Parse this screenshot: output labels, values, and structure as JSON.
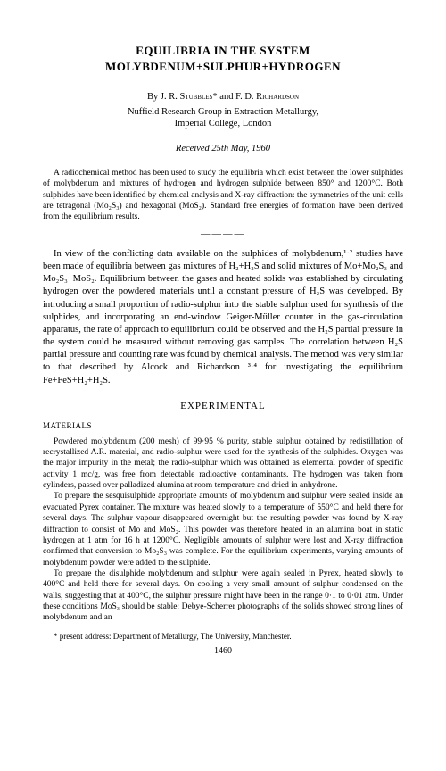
{
  "title_line1": "EQUILIBRIA IN THE SYSTEM",
  "title_line2": "MOLYBDENUM+SULPHUR+HYDROGEN",
  "byline_prefix": "By ",
  "author1": "J. R. Stubbles",
  "author_sep": "* and ",
  "author2": "F. D. Richardson",
  "affiliation_line1": "Nuffield Research Group in Extraction Metallurgy,",
  "affiliation_line2": "Imperial College, London",
  "received": "Received 25th May, 1960",
  "abstract": "A radiochemical method has been used to study the equilibria which exist between the lower sulphides of molybdenum and mixtures of hydrogen and hydrogen sulphide between 850° and 1200°C. Both sulphides have been identified by chemical analysis and X-ray diffraction: the symmetries of the unit cells are tetragonal (Mo₂S₃) and hexagonal (MoS₂). Standard free energies of formation have been derived from the equilibrium results.",
  "intro": "In view of the conflicting data available on the sulphides of molybdenum,¹·² studies have been made of equilibria between gas mixtures of H₂+H₂S and solid mixtures of Mo+Mo₂S₃ and Mo₂S₃+MoS₂. Equilibrium between the gases and heated solids was established by circulating hydrogen over the powdered materials until a constant pressure of H₂S was developed. By introducing a small proportion of radio-sulphur into the stable sulphur used for synthesis of the sulphides, and incorporating an end-window Geiger-Müller counter in the gas-circulation apparatus, the rate of approach to equilibrium could be observed and the H₂S partial pressure in the system could be measured without removing gas samples. The correlation between H₂S partial pressure and counting rate was found by chemical analysis. The method was very similar to that described by Alcock and Richardson ³·⁴ for investigating the equilibrium Fe+FeS+H₂+H₂S.",
  "section_heading": "EXPERIMENTAL",
  "subsection": "MATERIALS",
  "para1": "Powdered molybdenum (200 mesh) of 99·95 % purity, stable sulphur obtained by redistillation of recrystallized A.R. material, and radio-sulphur were used for the synthesis of the sulphides. Oxygen was the major impurity in the metal; the radio-sulphur which was obtained as elemental powder of specific activity 1 mc/g, was free from detectable radioactive contaminants. The hydrogen was taken from cylinders, passed over palladized alumina at room temperature and dried in anhydrone.",
  "para2": "To prepare the sesquisulphide appropriate amounts of molybdenum and sulphur were sealed inside an evacuated Pyrex container. The mixture was heated slowly to a temperature of 550°C and held there for several days. The sulphur vapour disappeared overnight but the resulting powder was found by X-ray diffraction to consist of Mo and MoS₂. This powder was therefore heated in an alumina boat in static hydrogen at 1 atm for 16 h at 1200°C. Negligible amounts of sulphur were lost and X-ray diffraction confirmed that conversion to Mo₂S₃ was complete. For the equilibrium experiments, varying amounts of molybdenum powder were added to the sulphide.",
  "para3": "To prepare the disulphide molybdenum and sulphur were again sealed in Pyrex, heated slowly to 400°C and held there for several days. On cooling a very small amount of sulphur condensed on the walls, suggesting that at 400°C, the sulphur pressure might have been in the range 0·1 to 0·01 atm. Under these conditions MoS₃ should be stable: Debye-Scherrer photographs of the solids showed strong lines of molybdenum and an",
  "footnote": "* present address: Department of Metallurgy, The University, Manchester.",
  "page_number": "1460"
}
